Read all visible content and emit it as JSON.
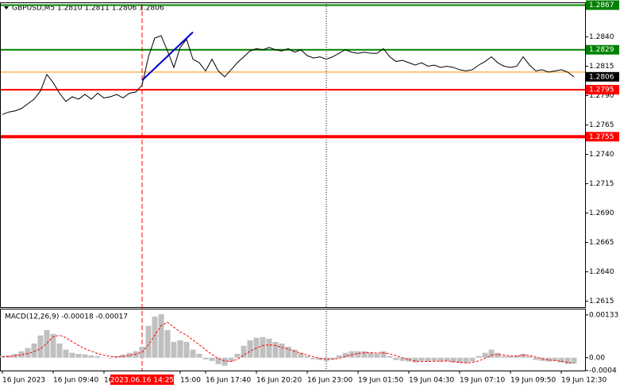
{
  "chart_data": [
    {
      "type": "line",
      "title": "GBPUSD,M5  1.2810 1.2811 1.2806 1.2806",
      "categories": [
        "16 Jun 2023",
        null,
        null,
        null,
        null,
        null,
        null,
        null,
        "16 Jun 09:40",
        null,
        null,
        null,
        null,
        null,
        null,
        null,
        "16",
        null,
        null,
        null,
        null,
        null,
        null,
        null,
        null,
        null,
        null,
        null,
        "15:00",
        null,
        null,
        null,
        "16 Jun 17:40",
        null,
        null,
        null,
        null,
        null,
        null,
        null,
        "16 Jun 20:20",
        null,
        null,
        null,
        null,
        null,
        null,
        null,
        "16 Jun 23:00",
        null,
        null,
        null,
        null,
        null,
        null,
        null,
        "19 Jun 01:50",
        null,
        null,
        null,
        null,
        null,
        null,
        null,
        "19 Jun 04:30",
        null,
        null,
        null,
        null,
        null,
        null,
        null,
        "19 Jun 07:10",
        null,
        null,
        null,
        null,
        null,
        null,
        null,
        "19 Jun 09:50",
        null,
        null,
        null,
        null,
        null,
        null,
        null,
        "19 Jun 12:30",
        null,
        null
      ],
      "values": [
        1.2774,
        1.2776,
        1.2777,
        1.2779,
        1.2783,
        1.2787,
        1.2794,
        1.2808,
        1.2801,
        1.2792,
        1.2785,
        1.2789,
        1.2787,
        1.2791,
        1.2787,
        1.2792,
        1.2788,
        1.2789,
        1.2791,
        1.2788,
        1.2792,
        1.2793,
        1.2799,
        1.2823,
        1.2839,
        1.2841,
        1.2828,
        1.2814,
        1.2831,
        1.2838,
        1.2821,
        1.2818,
        1.2811,
        1.2821,
        1.2811,
        1.2806,
        1.2812,
        1.2818,
        1.2823,
        1.2828,
        1.283,
        1.2829,
        1.2831,
        1.2829,
        1.2828,
        1.283,
        1.2827,
        1.2829,
        1.2824,
        1.2822,
        1.2823,
        1.2821,
        1.2823,
        1.2826,
        1.2829,
        1.2827,
        1.2826,
        1.2827,
        1.2826,
        1.2826,
        1.283,
        1.2823,
        1.2819,
        1.282,
        1.2818,
        1.2816,
        1.2818,
        1.2815,
        1.2816,
        1.2814,
        1.2815,
        1.2814,
        1.2812,
        1.2811,
        1.2812,
        1.2816,
        1.2819,
        1.2823,
        1.2818,
        1.2815,
        1.2814,
        1.2815,
        1.2823,
        1.2816,
        1.2811,
        1.2812,
        1.281,
        1.2811,
        1.2812,
        1.281,
        1.2806
      ],
      "color": "#000000",
      "ylim": [
        1.261,
        1.2868
      ],
      "yticks": [
        {
          "value": 1.284,
          "label": "1.2840"
        },
        1.2815,
        {
          "value": 1.279,
          "label": "1.2790"
        },
        1.2765,
        {
          "value": 1.274,
          "label": "1.2740"
        },
        1.2715,
        {
          "value": 1.269,
          "label": "1.2690"
        },
        1.2665,
        {
          "value": 1.264,
          "label": "1.2640"
        },
        1.2615
      ],
      "levels": [
        {
          "value": 1.2867,
          "color": "#008000"
        },
        {
          "value": 1.2829,
          "color": "#008000"
        },
        {
          "value": 1.2795,
          "color": "#ff0000"
        },
        {
          "value": 1.2755,
          "color": "#ff0000"
        }
      ],
      "ask_price": 1.281,
      "ask_color": "#ff8c00",
      "last_price": 1.2806,
      "trend_line": {
        "x": [
          22,
          30
        ],
        "y": [
          1.2803,
          1.2844
        ],
        "color": "#0000cc"
      },
      "cursor": {
        "index": 22,
        "label": "2023.06.16 14:25",
        "color": "#ff0000"
      },
      "marker_index": 51
    },
    {
      "type": "bar",
      "title": "MACD(12,26,9) -0.00018 -0.00017",
      "values": [
        5e-05,
        7e-05,
        0.00012,
        0.0002,
        0.0003,
        0.00044,
        0.00069,
        0.00086,
        0.00074,
        0.00044,
        0.00025,
        0.00015,
        0.00012,
        0.0001,
        7e-05,
        5e-05,
        0,
        -2e-05,
        5e-05,
        0.0001,
        0.00015,
        0.0002,
        0.00034,
        0.00099,
        0.00128,
        0.00135,
        0.00086,
        0.00049,
        0.00054,
        0.00049,
        0.00025,
        0.00012,
        -5e-05,
        -0.0001,
        -0.0002,
        -0.00025,
        -0.00012,
        0.00012,
        0.00037,
        0.00054,
        0.00062,
        0.00064,
        0.00059,
        0.00049,
        0.00044,
        0.00034,
        0.00025,
        0.00015,
        5e-05,
        -5e-05,
        -7e-05,
        -0.0001,
        -5e-05,
        7e-05,
        0.00015,
        0.0002,
        0.0002,
        0.0002,
        0.00015,
        0.00012,
        0.0002,
        5e-05,
        -7e-05,
        -0.0001,
        -0.00012,
        -0.00015,
        -0.0001,
        -0.00012,
        -0.0001,
        -0.00012,
        -0.0001,
        -0.00015,
        -0.00017,
        -0.00017,
        -0.00012,
        5e-05,
        0.00015,
        0.00025,
        0.00015,
        5e-05,
        5e-05,
        7e-05,
        0.00012,
        5e-05,
        -7e-05,
        -0.0001,
        -0.00012,
        -0.0001,
        -0.00015,
        -0.0002,
        -0.00018
      ],
      "color": "#c0c0c0",
      "signal": [
        3e-05,
        4e-05,
        6e-05,
        9e-05,
        0.00013,
        0.00019,
        0.00028,
        0.00045,
        0.00065,
        0.0007,
        0.00062,
        0.0005,
        0.00038,
        0.00028,
        0.0002,
        0.00013,
        8e-05,
        4e-05,
        2e-05,
        4e-05,
        7e-05,
        0.00011,
        0.00017,
        0.0004,
        0.0007,
        0.001,
        0.0011,
        0.00095,
        0.0008,
        0.0007,
        0.00055,
        0.0004,
        0.00025,
        0.0001,
        -3e-05,
        -0.0001,
        -0.00012,
        -5e-05,
        8e-05,
        0.0002,
        0.0003,
        0.00038,
        0.0004,
        0.00038,
        0.00032,
        0.00027,
        0.0002,
        0.00014,
        8e-05,
        3e-05,
        -2e-05,
        -4e-05,
        -5e-05,
        -2e-05,
        4e-05,
        9e-05,
        0.00013,
        0.00015,
        0.00016,
        0.00014,
        0.00015,
        0.00012,
        6e-05,
        0,
        -6e-05,
        -0.0001,
        -0.00012,
        -0.00012,
        -0.00011,
        -0.00011,
        -0.0001,
        -0.00012,
        -0.00014,
        -0.00016,
        -0.00015,
        -0.0001,
        -2e-05,
        8e-05,
        0.0001,
        8e-05,
        5e-05,
        5e-05,
        8e-05,
        7e-05,
        2e-05,
        -3e-05,
        -7e-05,
        -9e-05,
        -0.00011,
        -0.00014,
        -0.00017
      ],
      "signal_color": "#ff0000",
      "ylim": [
        -0.0004,
        0.0015
      ],
      "yticks": [
        0.00133,
        {
          "value": 0,
          "label": "0.00"
        },
        -0.0004
      ]
    }
  ]
}
